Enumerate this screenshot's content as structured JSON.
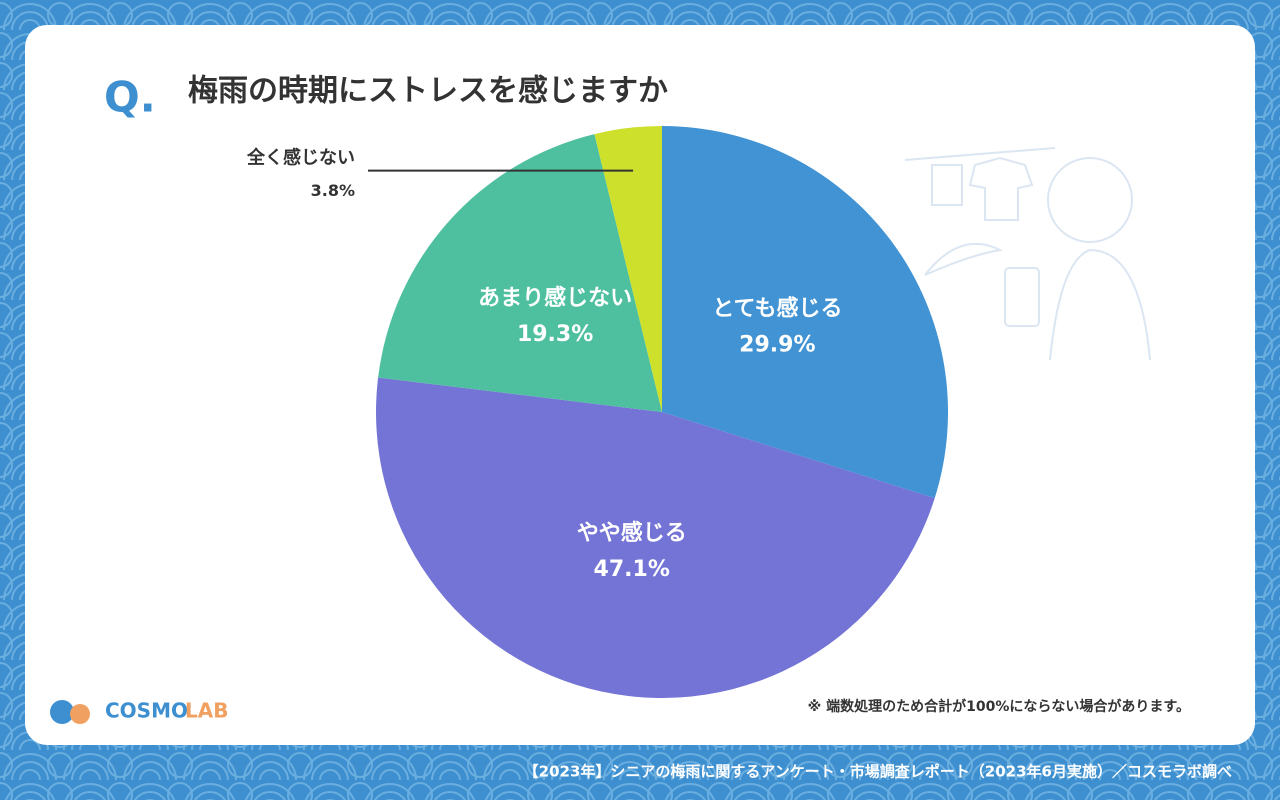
{
  "chart_data": {
    "type": "pie",
    "question_label": "Q.",
    "title": "梅雨の時期にストレスを感じますか",
    "categories": [
      "とても感じる",
      "やや感じる",
      "あまり感じない",
      "全く感じない"
    ],
    "values": [
      29.9,
      47.1,
      19.3,
      3.8
    ],
    "value_labels": [
      "29.9%",
      "47.1%",
      "19.3%",
      "3.8%"
    ],
    "colors": [
      "#4193d3",
      "#7474d6",
      "#4fc09f",
      "#cde02c"
    ],
    "note": "※ 端数処理のため合計が100%にならない場合があります。",
    "source": "【2023年】シニアの梅雨に関するアンケート・市場調査レポート（2023年6月実施）／コスモラボ調べ",
    "logo": [
      "COSMO",
      "LAB"
    ]
  }
}
